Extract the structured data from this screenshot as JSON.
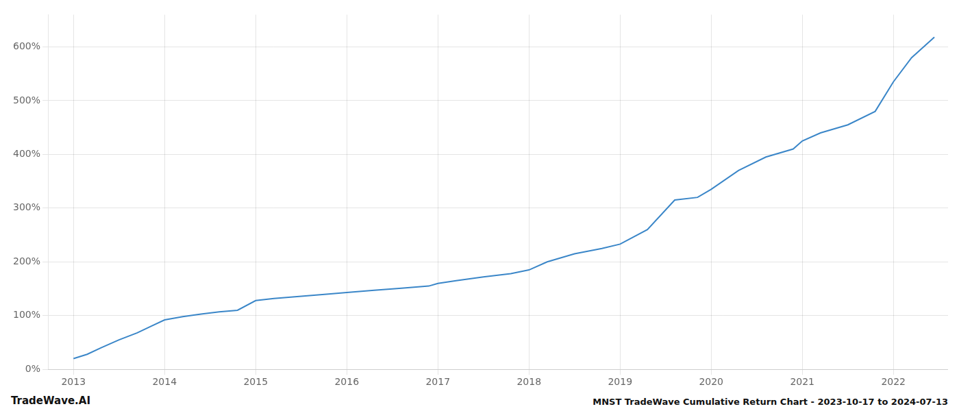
{
  "chart_data": {
    "type": "line",
    "title": "MNST TradeWave Cumulative Return Chart - 2023-10-17 to 2024-07-13",
    "annotations": [
      "TradeWave.AI"
    ],
    "x": [
      2013.0,
      2013.15,
      2013.3,
      2013.5,
      2013.7,
      2013.85,
      2014.0,
      2014.2,
      2014.4,
      2014.6,
      2014.8,
      2015.0,
      2015.2,
      2015.5,
      2015.8,
      2016.0,
      2016.3,
      2016.6,
      2016.9,
      2017.0,
      2017.2,
      2017.5,
      2017.8,
      2018.0,
      2018.2,
      2018.5,
      2018.8,
      2019.0,
      2019.3,
      2019.6,
      2019.85,
      2020.0,
      2020.3,
      2020.6,
      2020.9,
      2021.0,
      2021.2,
      2021.5,
      2021.8,
      2022.0,
      2022.2,
      2022.45
    ],
    "values": [
      20,
      28,
      40,
      55,
      68,
      80,
      92,
      98,
      103,
      107,
      110,
      128,
      132,
      136,
      140,
      143,
      147,
      151,
      155,
      160,
      165,
      172,
      178,
      185,
      200,
      215,
      225,
      233,
      260,
      315,
      320,
      335,
      370,
      395,
      410,
      425,
      440,
      455,
      480,
      535,
      580,
      618
    ],
    "color": "#3a86c8",
    "xlim": [
      2012.72,
      2022.6
    ],
    "xticks": [
      2013,
      2014,
      2015,
      2016,
      2017,
      2018,
      2019,
      2020,
      2021,
      2022
    ],
    "ylim": [
      0,
      660
    ],
    "yticks": [
      {
        "value": 0,
        "label": "0%"
      },
      {
        "value": 100,
        "label": "100%"
      },
      {
        "value": 200,
        "label": "200%"
      },
      {
        "value": 300,
        "label": "300%"
      },
      {
        "value": 400,
        "label": "400%"
      },
      {
        "value": 500,
        "label": "500%"
      },
      {
        "value": 600,
        "label": "600%"
      }
    ],
    "grid": true
  }
}
